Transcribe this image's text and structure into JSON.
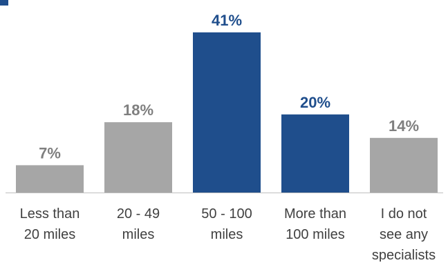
{
  "colors": {
    "highlight": "#1f4e8c",
    "neutral": "#a6a6a6",
    "highlight_label": "#1f4e8c",
    "neutral_label": "#7f7f7f",
    "axis": "#bfbfbf",
    "category_text": "#404040"
  },
  "chart_data": {
    "type": "bar",
    "title": "",
    "xlabel": "",
    "ylabel": "",
    "ylim": [
      0,
      45
    ],
    "grid": false,
    "legend": "none",
    "categories": [
      [
        "Less than",
        "20 miles"
      ],
      [
        "20 - 49",
        "miles"
      ],
      [
        "50 - 100",
        "miles"
      ],
      [
        "More than",
        "100 miles"
      ],
      [
        "I do not",
        "see any",
        "specialists"
      ]
    ],
    "values": [
      7,
      18,
      41,
      20,
      14
    ],
    "data_labels": [
      "7%",
      "18%",
      "41%",
      "20%",
      "14%"
    ],
    "highlighted": [
      false,
      false,
      true,
      true,
      false
    ]
  }
}
